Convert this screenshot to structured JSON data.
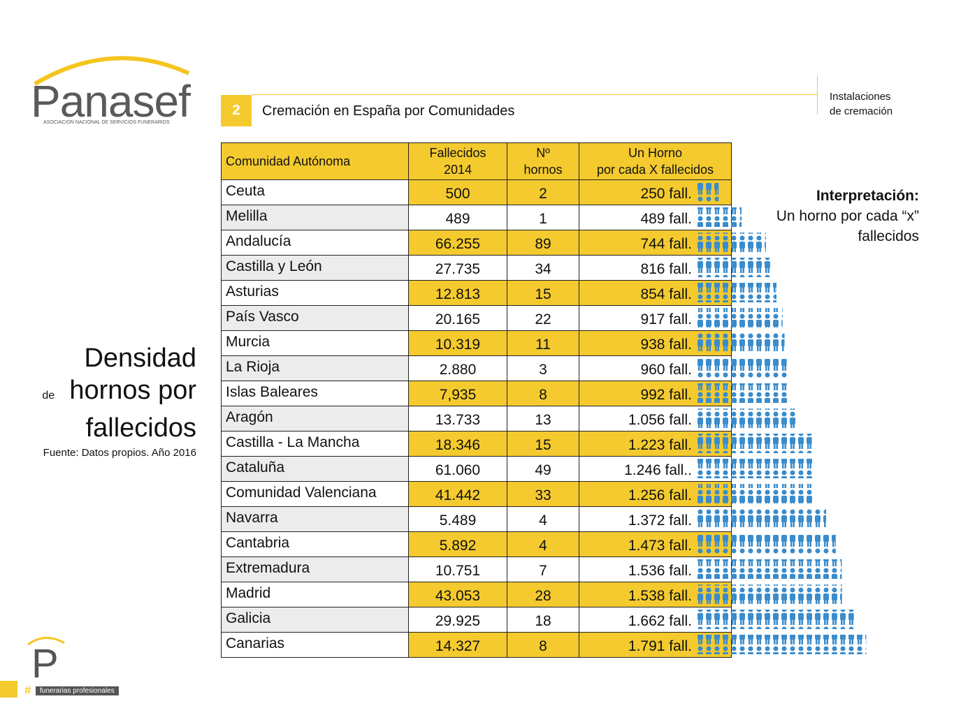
{
  "logo": {
    "name": "Panasef",
    "tagline": "ASOCIACIÓN NACIONAL DE SERVICIOS FUNERARIOS"
  },
  "section": {
    "number": "2",
    "title": "Cremación en España por Comunidades"
  },
  "side_label": [
    "Instalaciones",
    "de cremación"
  ],
  "left_title": {
    "line1": "Densidad",
    "small": "de",
    "line2": "hornos por",
    "line3": "fallecidos"
  },
  "source": "Fuente:  Datos propios.  Año 2016",
  "interpretation": {
    "title": "Interpretación:",
    "lines": [
      "Un horno por cada “x”",
      "fallecidos"
    ]
  },
  "table": {
    "headers": [
      [
        "Comunidad  Autónoma"
      ],
      [
        "Fallecidos",
        "2014"
      ],
      [
        "Nº",
        "hornos"
      ],
      [
        "Un Horno",
        "por cada X fallecidos"
      ]
    ],
    "rows": [
      [
        "Ceuta",
        "500",
        "2",
        {
          "value": 250,
          "label": "250 fall."
        }
      ],
      [
        "Melilla",
        "489",
        "1",
        {
          "value": 489,
          "label": "489 fall."
        }
      ],
      [
        "Andalucía",
        "66.255",
        "89",
        {
          "value": 744,
          "label": "744 fall."
        }
      ],
      [
        "Castilla y León",
        "27.735",
        "34",
        {
          "value": 816,
          "label": "816 fall."
        }
      ],
      [
        "Asturias",
        "12.813",
        "15",
        {
          "value": 854,
          "label": "854 fall."
        }
      ],
      [
        "País Vasco",
        "20.165",
        "22",
        {
          "value": 917,
          "label": "917 fall."
        }
      ],
      [
        "Murcia",
        "10.319",
        "11",
        {
          "value": 938,
          "label": "938 fall."
        }
      ],
      [
        "La Rioja",
        "2.880",
        "3",
        {
          "value": 960,
          "label": "960 fall."
        }
      ],
      [
        "Islas Baleares",
        "7,935",
        "8",
        {
          "value": 992,
          "label": "992 fall."
        }
      ],
      [
        "Aragón",
        "13.733",
        "13",
        {
          "value": 1056,
          "label": "1.056  fall."
        }
      ],
      [
        "Castilla - La Mancha",
        "18.346",
        "15",
        {
          "value": 1223,
          "label": "1.223 fall."
        }
      ],
      [
        "Cataluña",
        "61.060",
        "49",
        {
          "value": 1246,
          "label": "1.246 fall.."
        }
      ],
      [
        "Comunidad Valenciana",
        "41.442",
        "33",
        {
          "value": 1256,
          "label": "1.256 fall."
        }
      ],
      [
        "Navarra",
        "5.489",
        "4",
        {
          "value": 1372,
          "label": "1.372 fall."
        }
      ],
      [
        "Cantabria",
        "5.892",
        "4",
        {
          "value": 1473,
          "label": "1.473 fall."
        }
      ],
      [
        "Extremadura",
        "10.751",
        "7",
        {
          "value": 1536,
          "label": "1.536 fall."
        }
      ],
      [
        "Madrid",
        "43.053",
        "28",
        {
          "value": 1538,
          "label": "1.538 fall."
        }
      ],
      [
        "Galicia",
        "29.925",
        "18",
        {
          "value": 1662,
          "label": "1.662 fall."
        }
      ],
      [
        "Canarias",
        "14.327",
        "8",
        {
          "value": 1791,
          "label": "1.791 fall."
        }
      ]
    ]
  },
  "footer": {
    "hash": "#",
    "label": "funerarias profesionales"
  }
}
